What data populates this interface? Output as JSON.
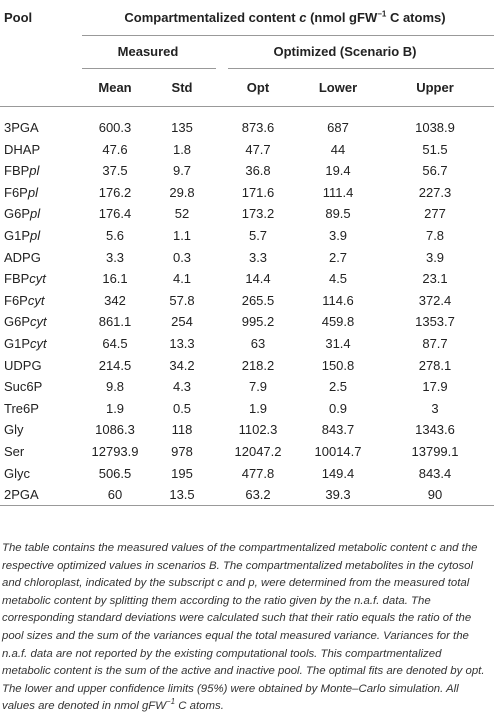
{
  "table": {
    "pool_header": "Pool",
    "title_parts": [
      "Compartmentalized content ",
      "c",
      " (nmol gFW",
      "−1",
      " C atoms)"
    ],
    "groups": [
      "Measured",
      "Optimized (Scenario B)"
    ],
    "columns": [
      "Mean",
      "Std",
      "Opt",
      "Lower",
      "Upper"
    ],
    "rows": [
      [
        {
          "base": "3PGA"
        },
        "600.3",
        "135",
        "873.6",
        "687",
        "1038.9"
      ],
      [
        {
          "base": "DHAP"
        },
        "47.6",
        "1.8",
        "47.7",
        "44",
        "51.5"
      ],
      [
        {
          "base": "FBP",
          "italic": "pl"
        },
        "37.5",
        "9.7",
        "36.8",
        "19.4",
        "56.7"
      ],
      [
        {
          "base": "F6P",
          "italic": "pl"
        },
        "176.2",
        "29.8",
        "171.6",
        "111.4",
        "227.3"
      ],
      [
        {
          "base": "G6P",
          "italic": "pl"
        },
        "176.4",
        "52",
        "173.2",
        "89.5",
        "277"
      ],
      [
        {
          "base": "G1P",
          "italic": "pl"
        },
        "5.6",
        "1.1",
        "5.7",
        "3.9",
        "7.8"
      ],
      [
        {
          "base": "ADPG"
        },
        "3.3",
        "0.3",
        "3.3",
        "2.7",
        "3.9"
      ],
      [
        {
          "base": "FBP",
          "italic": "cyt"
        },
        "16.1",
        "4.1",
        "14.4",
        "4.5",
        "23.1"
      ],
      [
        {
          "base": "F6P",
          "italic": "cyt"
        },
        "342",
        "57.8",
        "265.5",
        "114.6",
        "372.4"
      ],
      [
        {
          "base": "G6P",
          "italic": "cyt"
        },
        "861.1",
        "254",
        "995.2",
        "459.8",
        "1353.7"
      ],
      [
        {
          "base": "G1P",
          "italic": "cyt"
        },
        "64.5",
        "13.3",
        "63",
        "31.4",
        "87.7"
      ],
      [
        {
          "base": "UDPG"
        },
        "214.5",
        "34.2",
        "218.2",
        "150.8",
        "278.1"
      ],
      [
        {
          "base": "Suc6P"
        },
        "9.8",
        "4.3",
        "7.9",
        "2.5",
        "17.9"
      ],
      [
        {
          "base": "Tre6P"
        },
        "1.9",
        "0.5",
        "1.9",
        "0.9",
        "3"
      ],
      [
        {
          "base": "Gly"
        },
        "1086.3",
        "118",
        "1102.3",
        "843.7",
        "1343.6"
      ],
      [
        {
          "base": "Ser"
        },
        "12793.9",
        "978",
        "12047.2",
        "10014.7",
        "13799.1"
      ],
      [
        {
          "base": "Glyc"
        },
        "506.5",
        "195",
        "477.8",
        "149.4",
        "843.4"
      ],
      [
        {
          "base": "2PGA"
        },
        "60",
        "13.5",
        "63.2",
        "39.3",
        "90"
      ]
    ]
  },
  "caption_parts": [
    "The table contains the measured values of the compartmentalized metabolic content c and the respective optimized values in scenarios B. The compartmentalized metabolites in the cytosol and chloroplast, indicated by the subscript c and p, were determined from the measured total metabolic content by splitting them according to the ratio given by the n.a.f. data. The corresponding standard deviations were calculated such that their ratio equals the ratio of the pool sizes and the sum of the variances equal the total measured variance. Variances for the n.a.f. data are not reported by the existing computational tools. This compartmentalized metabolic content is the sum of the active and inactive pool. The optimal fits are denoted by opt. The lower and upper confidence limits (95%) were obtained by Monte–Carlo simulation. All values are denoted in nmol gFW",
    "−1",
    " C atoms."
  ]
}
